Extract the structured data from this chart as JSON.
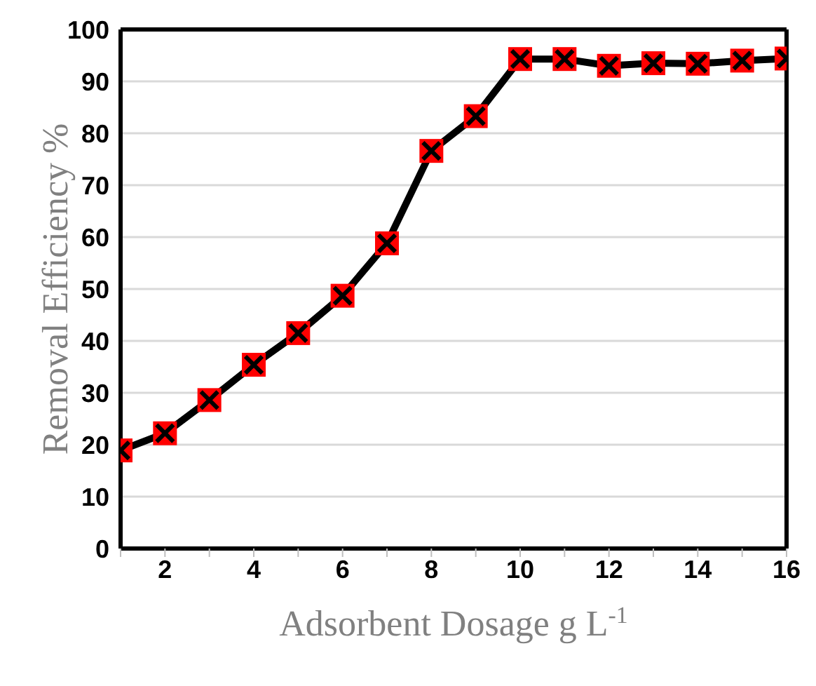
{
  "chart_data": {
    "type": "line",
    "xlabel": "Adsorbent Dosage g L$^{-1}$",
    "ylabel": "Removal Efficiency %",
    "x": [
      1,
      2,
      3,
      4,
      5,
      6,
      7,
      8,
      9,
      10,
      11,
      12,
      13,
      14,
      15,
      16
    ],
    "series": [
      {
        "color": "#000000",
        "values": [
          18.9,
          22.2,
          28.6,
          35.4,
          41.5,
          48.7,
          58.8,
          76.6,
          83.3,
          94.3,
          94.3,
          93.0,
          93.5,
          93.4,
          94.0,
          94.4
        ]
      }
    ],
    "xlim": [
      1,
      16
    ],
    "xticks": [
      {
        "value": 1,
        "label": null
      },
      2,
      {
        "value": 3,
        "label": null
      },
      4,
      {
        "value": 5,
        "label": null
      },
      6,
      {
        "value": 7,
        "label": null
      },
      8,
      {
        "value": 9,
        "label": null
      },
      10,
      {
        "value": 11,
        "label": null
      },
      12,
      {
        "value": 13,
        "label": null
      },
      14,
      {
        "value": 15,
        "label": null
      },
      16
    ],
    "ylim": [
      0,
      100
    ],
    "yticks": [
      0,
      10,
      20,
      30,
      40,
      50,
      60,
      70,
      80,
      90,
      100
    ],
    "grid": "y",
    "legend": false,
    "marker": "cross",
    "line_style": "solid"
  }
}
